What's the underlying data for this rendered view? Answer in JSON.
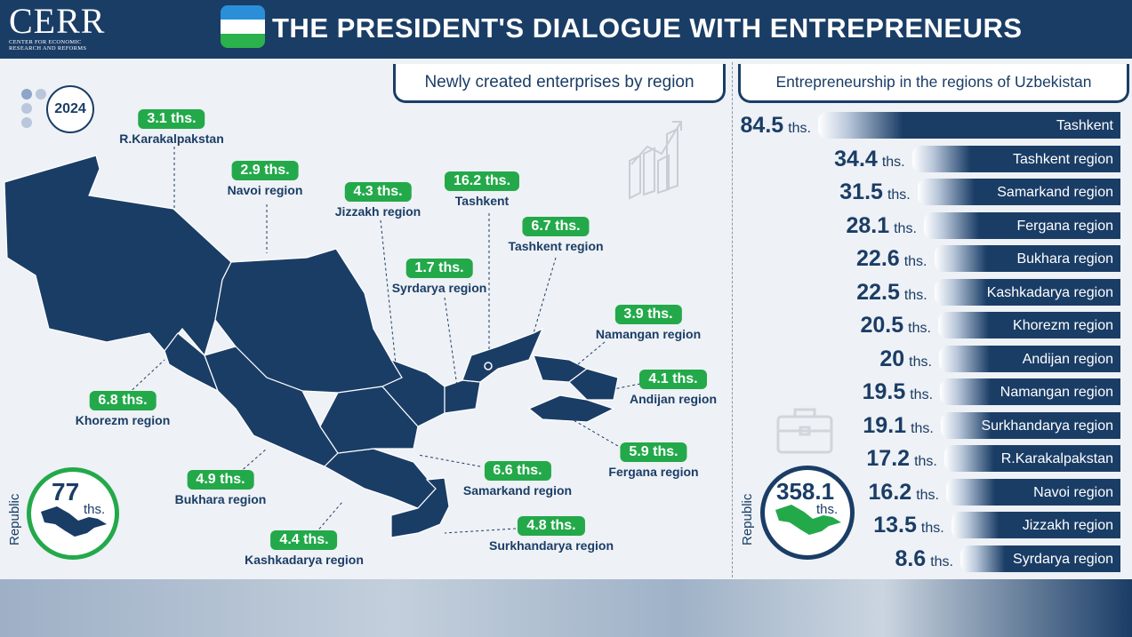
{
  "header": {
    "logo": "CERR",
    "logo_sub_line1": "CENTER FOR ECONOMIC",
    "logo_sub_line2": "RESEARCH AND REFORMS",
    "title": "THE PRESIDENT'S DIALOGUE WITH ENTREPRENEURS",
    "flag_colors": [
      "#2a8fd8",
      "#ffffff",
      "#2bb24c"
    ]
  },
  "year": "2024",
  "colors": {
    "navy": "#1a3d66",
    "green": "#23a94a",
    "background": "#eef1f5"
  },
  "left_panel": {
    "title": "Newly created enterprises by region",
    "republic_label": "Republic",
    "republic_value": "77",
    "republic_unit": "ths."
  },
  "right_panel": {
    "title": "Entrepreneurship in the regions of Uzbekistan",
    "republic_label": "Republic",
    "republic_value": "358.1",
    "republic_unit": "ths."
  },
  "chart_data": [
    {
      "type": "map",
      "title": "Newly created enterprises by region",
      "unit": "ths.",
      "regions": [
        {
          "name": "R.Karakalpakstan",
          "value": 3.1,
          "label": "3.1 ths."
        },
        {
          "name": "Navoi region",
          "value": 2.9,
          "label": "2.9 ths."
        },
        {
          "name": "Jizzakh region",
          "value": 4.3,
          "label": "4.3 ths."
        },
        {
          "name": "Tashkent",
          "value": 16.2,
          "label": "16.2 ths."
        },
        {
          "name": "Tashkent region",
          "value": 6.7,
          "label": "6.7 ths."
        },
        {
          "name": "Syrdarya region",
          "value": 1.7,
          "label": "1.7 ths."
        },
        {
          "name": "Namangan region",
          "value": 3.9,
          "label": "3.9 ths."
        },
        {
          "name": "Andijan region",
          "value": 4.1,
          "label": "4.1 ths."
        },
        {
          "name": "Khorezm region",
          "value": 6.8,
          "label": "6.8 ths."
        },
        {
          "name": "Fergana region",
          "value": 5.9,
          "label": "5.9 ths."
        },
        {
          "name": "Samarkand region",
          "value": 6.6,
          "label": "6.6 ths."
        },
        {
          "name": "Bukhara region",
          "value": 4.9,
          "label": "4.9 ths."
        },
        {
          "name": "Surkhandarya region",
          "value": 4.8,
          "label": "4.8 ths."
        },
        {
          "name": "Kashkadarya region",
          "value": 4.4,
          "label": "4.4 ths."
        }
      ],
      "total": {
        "label": "Republic",
        "value": 77,
        "unit": "ths."
      }
    },
    {
      "type": "bar",
      "title": "Entrepreneurship in the regions of Uzbekistan",
      "unit": "ths.",
      "orientation": "horizontal",
      "categories": [
        "Tashkent",
        "Tashkent region",
        "Samarkand region",
        "Fergana region",
        "Bukhara region",
        "Kashkadarya region",
        "Khorezm region",
        "Andijan region",
        "Namangan region",
        "Surkhandarya region",
        "R.Karakalpakstan",
        "Navoi region",
        "Jizzakh region",
        "Syrdarya region"
      ],
      "values": [
        84.5,
        34.4,
        31.5,
        28.1,
        22.6,
        22.5,
        20.5,
        20,
        19.5,
        19.1,
        17.2,
        16.2,
        13.5,
        8.6
      ],
      "value_labels": [
        "84.5",
        "34.4",
        "31.5",
        "28.1",
        "22.6",
        "22.5",
        "20.5",
        "20",
        "19.5",
        "19.1",
        "17.2",
        "16.2",
        "13.5",
        "8.6"
      ],
      "total": {
        "label": "Republic",
        "value": 358.1,
        "unit": "ths."
      }
    }
  ]
}
